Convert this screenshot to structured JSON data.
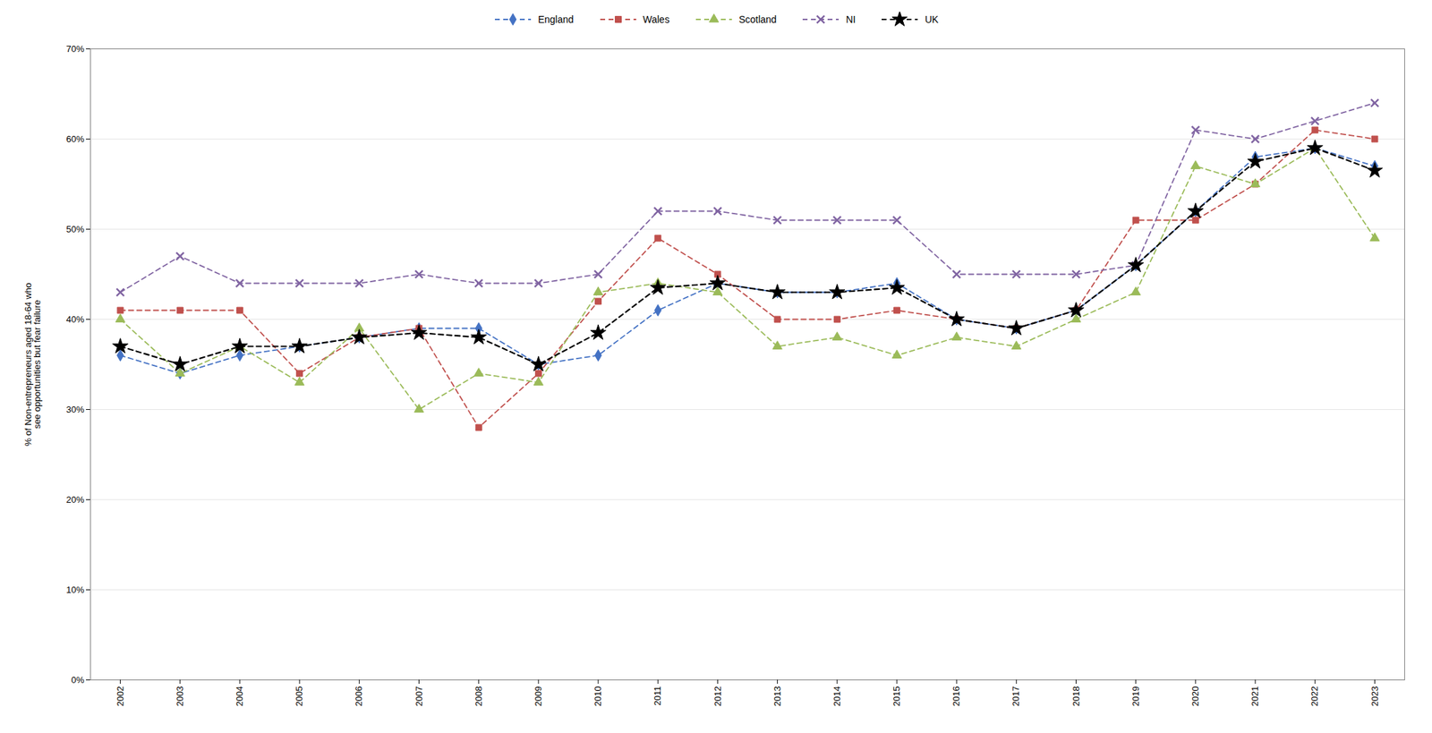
{
  "chart_data": {
    "type": "line",
    "y_label": "% of Non-entrepreneurs aged 18-64 who\nsee opportunities but fear failure",
    "x": [
      2002,
      2003,
      2004,
      2005,
      2006,
      2007,
      2008,
      2009,
      2010,
      2011,
      2012,
      2013,
      2014,
      2015,
      2016,
      2017,
      2018,
      2019,
      2020,
      2021,
      2022,
      2023
    ],
    "series": [
      {
        "name": "England",
        "color": "#4472C4",
        "marker": "diamond",
        "line_style": "dashed",
        "values": [
          0.36,
          0.34,
          0.36,
          0.37,
          0.38,
          0.39,
          0.39,
          0.35,
          0.36,
          0.41,
          0.44,
          0.43,
          0.43,
          0.44,
          0.4,
          0.39,
          0.41,
          0.46,
          0.52,
          0.58,
          0.59,
          0.57
        ]
      },
      {
        "name": "Wales",
        "color": "#C0504D",
        "marker": "square",
        "line_style": "dashed",
        "values": [
          0.41,
          0.41,
          0.41,
          0.34,
          0.38,
          0.39,
          0.28,
          0.34,
          0.42,
          0.49,
          0.45,
          0.4,
          0.4,
          0.41,
          0.4,
          0.39,
          0.41,
          0.51,
          0.51,
          0.55,
          0.61,
          0.6
        ]
      },
      {
        "name": "Scotland",
        "color": "#9BBB59",
        "marker": "triangle",
        "line_style": "dashed",
        "values": [
          0.4,
          0.34,
          0.37,
          0.33,
          0.39,
          0.3,
          0.34,
          0.33,
          0.43,
          0.44,
          0.43,
          0.37,
          0.38,
          0.36,
          0.38,
          0.37,
          0.4,
          0.43,
          0.57,
          0.55,
          0.59,
          0.49
        ]
      },
      {
        "name": "NI",
        "color": "#8064A2",
        "marker": "x",
        "line_style": "dashed",
        "values": [
          0.43,
          0.47,
          0.44,
          0.44,
          0.44,
          0.45,
          0.44,
          0.44,
          0.45,
          0.52,
          0.52,
          0.51,
          0.51,
          0.51,
          0.45,
          0.45,
          0.45,
          0.46,
          0.61,
          0.6,
          0.62,
          0.64
        ]
      },
      {
        "name": "UK",
        "color": "#000000",
        "marker": "star",
        "line_style": "dashed",
        "values": [
          0.37,
          0.35,
          0.37,
          0.37,
          0.38,
          0.385,
          0.38,
          0.35,
          0.385,
          0.435,
          0.44,
          0.43,
          0.43,
          0.435,
          0.4,
          0.39,
          0.41,
          0.46,
          0.52,
          0.575,
          0.59,
          0.565
        ]
      }
    ],
    "xlim": [
      2001.5,
      2023.5
    ],
    "xticks": [
      2002,
      2003,
      2004,
      2005,
      2006,
      2007,
      2008,
      2009,
      2010,
      2011,
      2012,
      2013,
      2014,
      2015,
      2016,
      2017,
      2018,
      2019,
      2020,
      2021,
      2022,
      2023
    ],
    "ylim": [
      0.0,
      0.7
    ],
    "yticks": [
      {
        "value": 0.0,
        "label": "0%"
      },
      {
        "value": 0.1,
        "label": "10%"
      },
      {
        "value": 0.2,
        "label": "20%"
      },
      {
        "value": 0.3,
        "label": "30%"
      },
      {
        "value": 0.4,
        "label": "40%"
      },
      {
        "value": 0.5,
        "label": "50%"
      },
      {
        "value": 0.6,
        "label": "60%"
      },
      {
        "value": 0.7,
        "label": "70%"
      }
    ],
    "grid": true,
    "legend": "top"
  }
}
